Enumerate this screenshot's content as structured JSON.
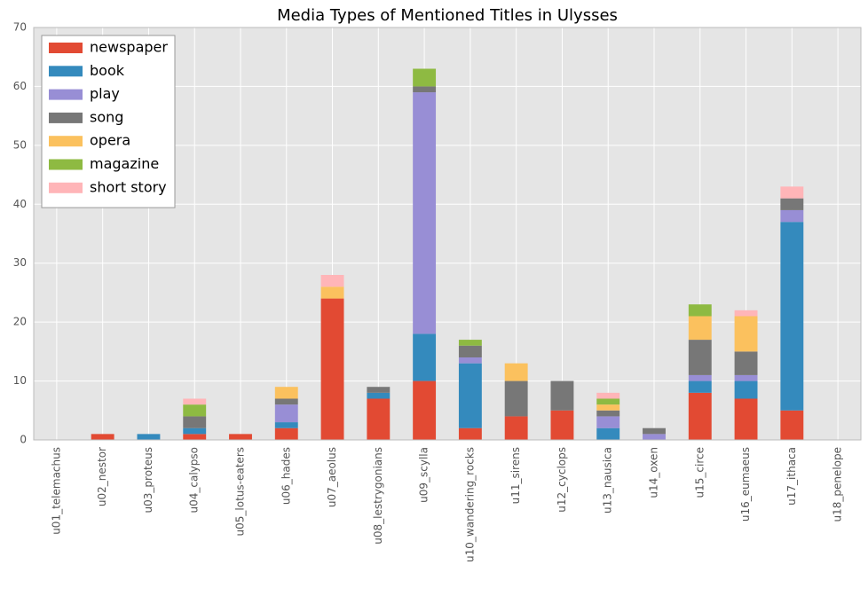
{
  "chart_data": {
    "type": "stacked_bar",
    "title": "Media Types of Mentioned Titles in Ulysses",
    "categories": [
      "u01_telemachus",
      "u02_nestor",
      "u03_proteus",
      "u04_calypso",
      "u05_lotus-eaters",
      "u06_hades",
      "u07_aeolus",
      "u08_lestrygonians",
      "u09_scylla",
      "u10_wandering_rocks",
      "u11_sirens",
      "u12_cyclops",
      "u13_nausica",
      "u14_oxen",
      "u15_circe",
      "u16_eumaeus",
      "u17_ithaca",
      "u18_penelope"
    ],
    "series": [
      {
        "name": "newspaper",
        "color": "#E24A33",
        "values": [
          0,
          1,
          0,
          1,
          1,
          2,
          24,
          7,
          10,
          2,
          4,
          5,
          0,
          0,
          8,
          7,
          5,
          0
        ]
      },
      {
        "name": "book",
        "color": "#348ABD",
        "values": [
          0,
          0,
          1,
          1,
          0,
          1,
          0,
          1,
          8,
          11,
          0,
          0,
          2,
          0,
          2,
          3,
          32,
          0
        ]
      },
      {
        "name": "play",
        "color": "#988ED5",
        "values": [
          0,
          0,
          0,
          0,
          0,
          3,
          0,
          0,
          41,
          1,
          0,
          0,
          2,
          1,
          1,
          1,
          2,
          0
        ]
      },
      {
        "name": "song",
        "color": "#777777",
        "values": [
          0,
          0,
          0,
          2,
          0,
          1,
          0,
          1,
          1,
          2,
          6,
          5,
          1,
          1,
          6,
          4,
          2,
          0
        ]
      },
      {
        "name": "opera",
        "color": "#FBC15E",
        "values": [
          0,
          0,
          0,
          0,
          0,
          2,
          2,
          0,
          0,
          0,
          3,
          0,
          1,
          0,
          4,
          6,
          0,
          0
        ]
      },
      {
        "name": "magazine",
        "color": "#8EBA42",
        "values": [
          0,
          0,
          0,
          2,
          0,
          0,
          0,
          0,
          3,
          1,
          0,
          0,
          1,
          0,
          2,
          0,
          0,
          0
        ]
      },
      {
        "name": "short story",
        "color": "#FFB5B8",
        "values": [
          0,
          0,
          0,
          1,
          0,
          0,
          2,
          0,
          0,
          0,
          0,
          0,
          1,
          0,
          0,
          1,
          2,
          0
        ]
      }
    ],
    "ylim": [
      0,
      70
    ],
    "yticks": [
      0,
      10,
      20,
      30,
      40,
      50,
      60,
      70
    ],
    "grid": true,
    "legend": "upper left"
  }
}
